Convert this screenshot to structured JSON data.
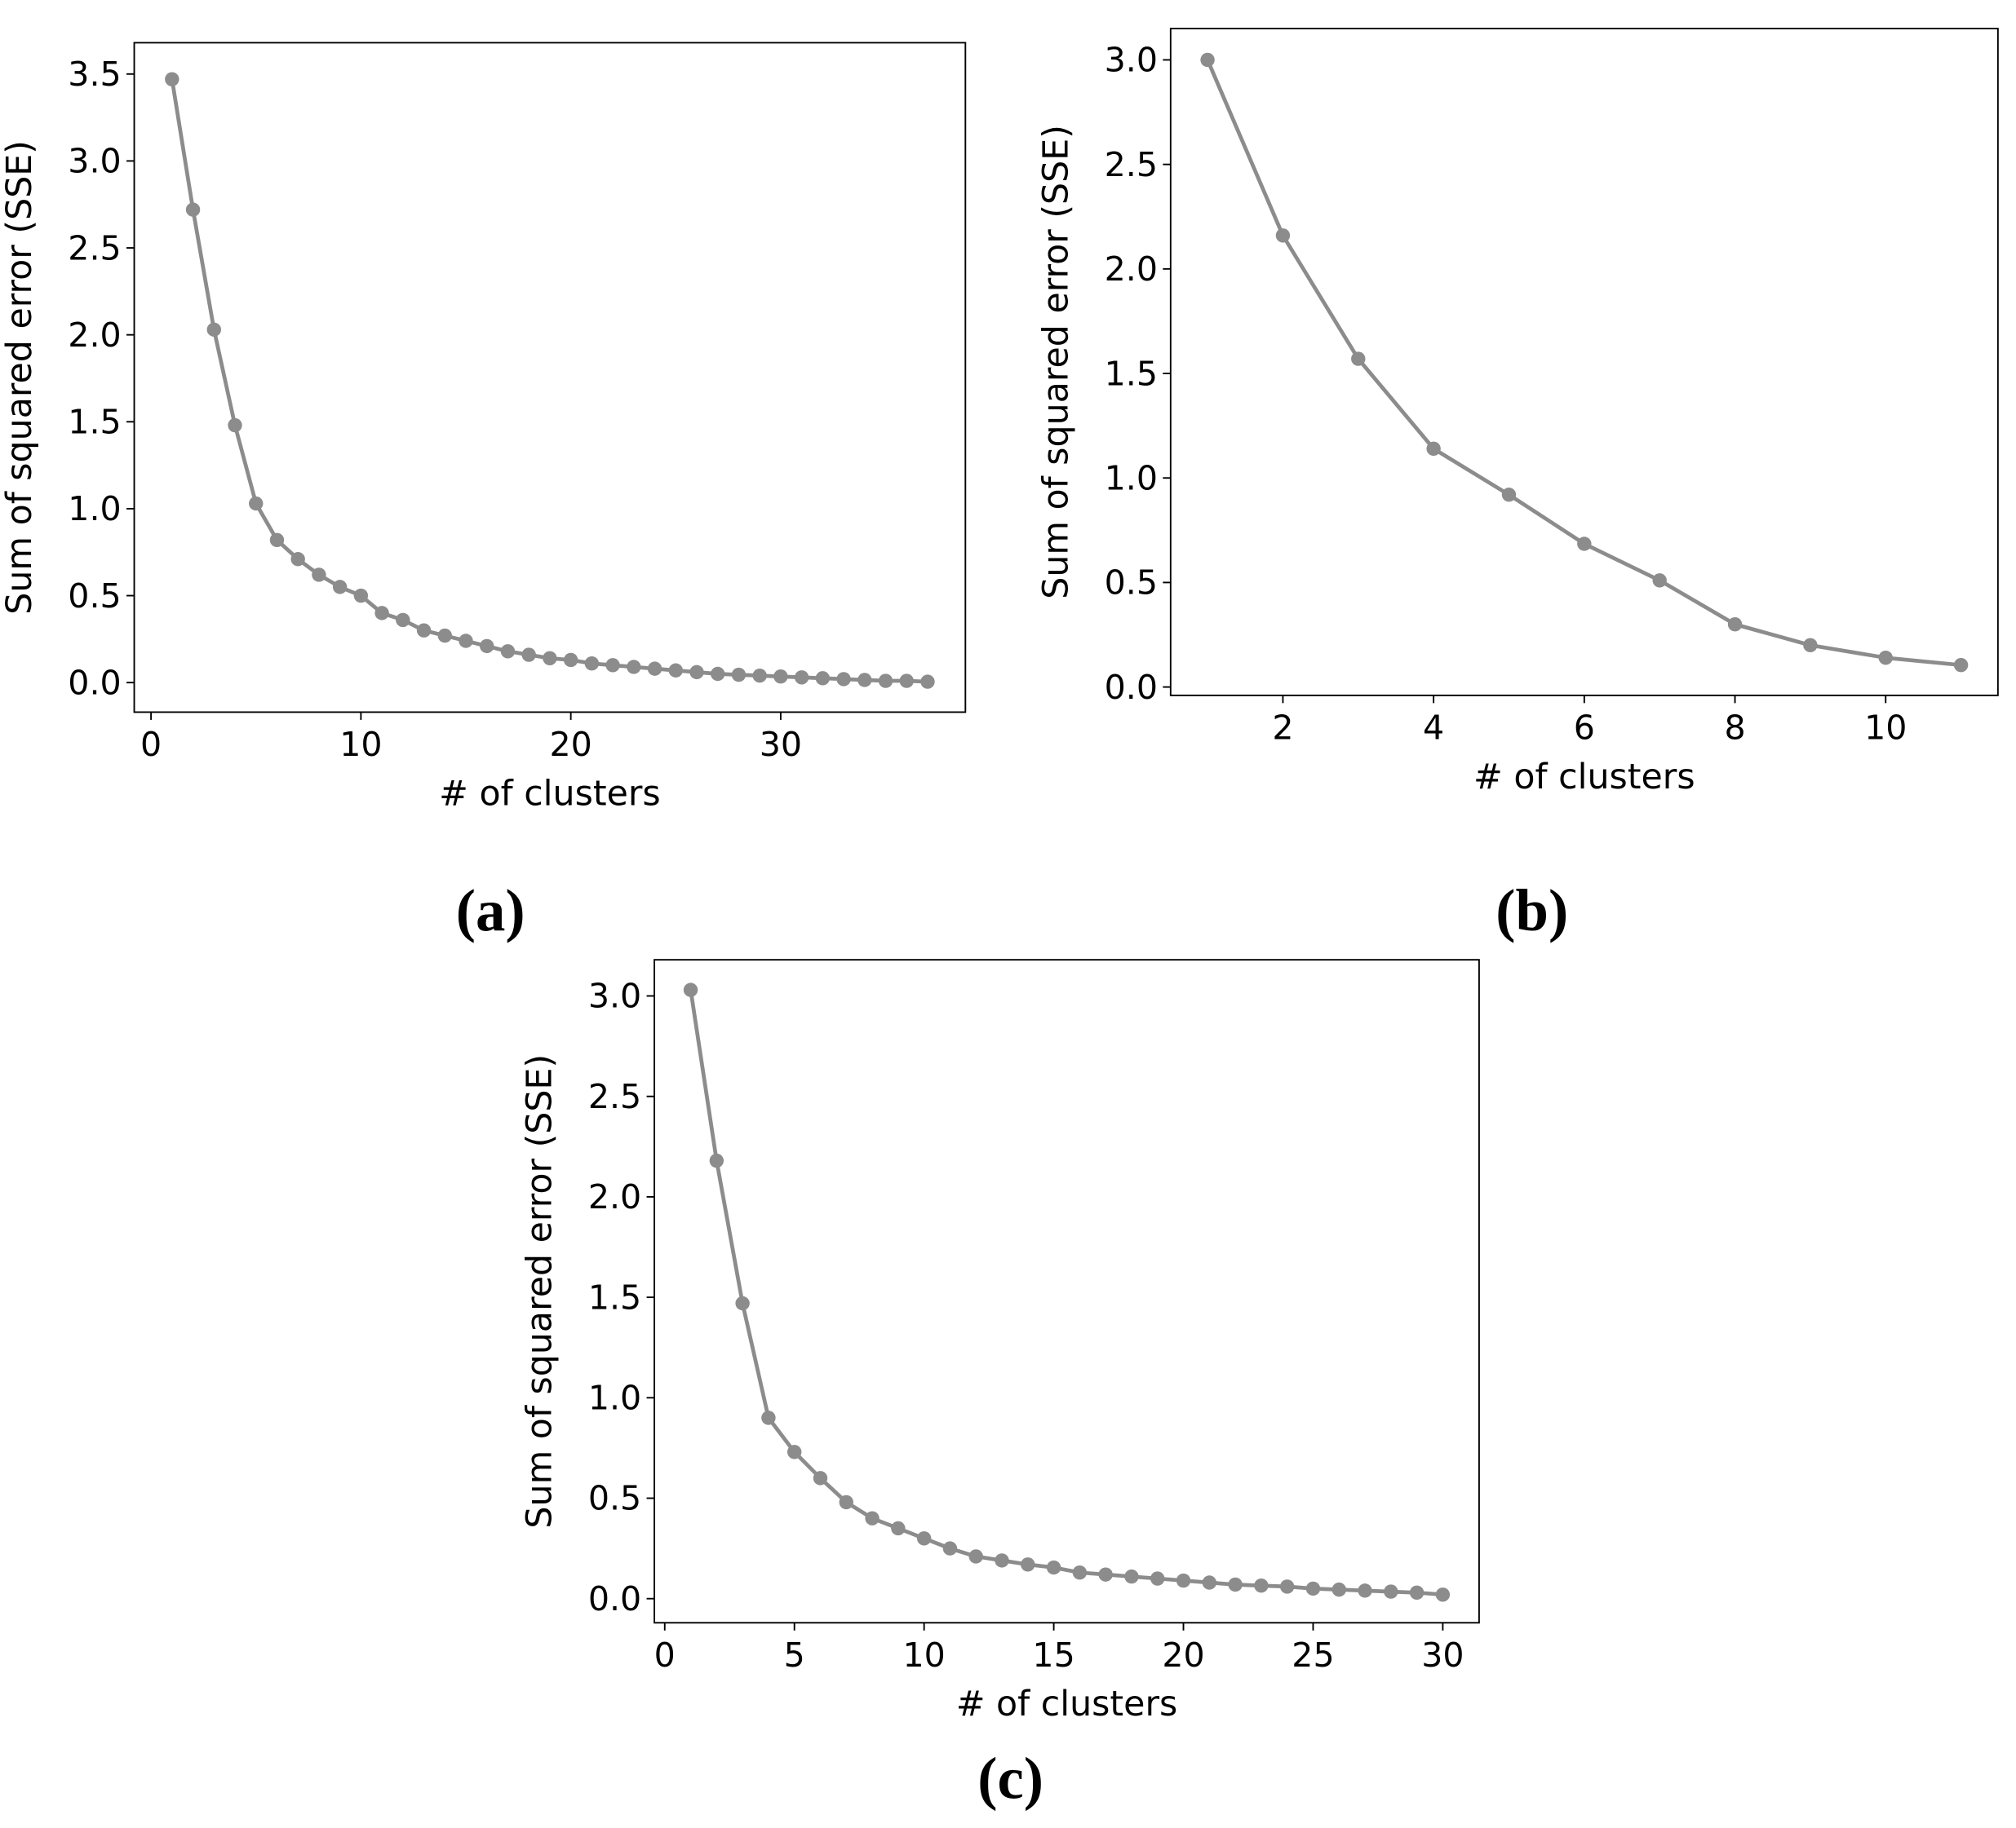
{
  "chart_data": [
    {
      "type": "line",
      "panel_label": "(a)",
      "xlabel": "# of clusters",
      "ylabel": "Sum of squared error (SSE)",
      "color": "#8c8c8c",
      "x": [
        1,
        2,
        3,
        4,
        5,
        6,
        7,
        8,
        9,
        10,
        11,
        12,
        13,
        14,
        15,
        16,
        17,
        18,
        19,
        20,
        21,
        22,
        23,
        24,
        25,
        26,
        27,
        28,
        29,
        30,
        31,
        32,
        33,
        34,
        35,
        36,
        37
      ],
      "values": [
        3.47,
        2.72,
        2.03,
        1.48,
        1.03,
        0.82,
        0.71,
        0.62,
        0.55,
        0.5,
        0.4,
        0.36,
        0.3,
        0.27,
        0.24,
        0.21,
        0.18,
        0.16,
        0.14,
        0.13,
        0.11,
        0.1,
        0.09,
        0.08,
        0.07,
        0.06,
        0.05,
        0.045,
        0.04,
        0.035,
        0.03,
        0.025,
        0.02,
        0.015,
        0.01,
        0.01,
        0.005
      ],
      "xlim": [
        -0.8,
        38.8
      ],
      "ylim": [
        -0.17,
        3.68
      ],
      "xticks": [
        0,
        10,
        20,
        30
      ],
      "yticks": [
        {
          "value": 0,
          "label": "0.0"
        },
        0.5,
        {
          "value": 1,
          "label": "1.0"
        },
        1.5,
        {
          "value": 2,
          "label": "2.0"
        },
        2.5,
        {
          "value": 3,
          "label": "3.0"
        },
        3.5
      ]
    },
    {
      "type": "line",
      "panel_label": "(b)",
      "xlabel": "# of clusters",
      "ylabel": "Sum of squared error (SSE)",
      "color": "#8c8c8c",
      "x": [
        1,
        2,
        3,
        4,
        5,
        6,
        7,
        8,
        9,
        10,
        11
      ],
      "values": [
        3.0,
        2.16,
        1.57,
        1.14,
        0.92,
        0.685,
        0.51,
        0.3,
        0.2,
        0.14,
        0.105
      ],
      "xlim": [
        0.51,
        11.49
      ],
      "ylim": [
        -0.04,
        3.15
      ],
      "xticks": [
        2,
        4,
        6,
        8,
        10
      ],
      "yticks": [
        {
          "value": 0,
          "label": "0.0"
        },
        0.5,
        {
          "value": 1,
          "label": "1.0"
        },
        1.5,
        {
          "value": 2,
          "label": "2.0"
        },
        2.5,
        {
          "value": 3,
          "label": "3.0"
        }
      ]
    },
    {
      "type": "line",
      "panel_label": "(c)",
      "xlabel": "# of clusters",
      "ylabel": "Sum of squared error (SSE)",
      "color": "#8c8c8c",
      "x": [
        1,
        2,
        3,
        4,
        5,
        6,
        7,
        8,
        9,
        10,
        11,
        12,
        13,
        14,
        15,
        16,
        17,
        18,
        19,
        20,
        21,
        22,
        23,
        24,
        25,
        26,
        27,
        28,
        29,
        30
      ],
      "values": [
        3.03,
        2.18,
        1.47,
        0.9,
        0.73,
        0.6,
        0.48,
        0.4,
        0.35,
        0.3,
        0.25,
        0.21,
        0.19,
        0.17,
        0.155,
        0.13,
        0.12,
        0.11,
        0.1,
        0.09,
        0.08,
        0.07,
        0.065,
        0.06,
        0.05,
        0.045,
        0.04,
        0.035,
        0.03,
        0.02
      ],
      "xlim": [
        -0.4,
        31.4
      ],
      "ylim": [
        -0.12,
        3.18
      ],
      "xticks": [
        0,
        5,
        10,
        15,
        20,
        25,
        30
      ],
      "yticks": [
        {
          "value": 0,
          "label": "0.0"
        },
        0.5,
        {
          "value": 1,
          "label": "1.0"
        },
        1.5,
        {
          "value": 2,
          "label": "2.0"
        },
        2.5,
        {
          "value": 3,
          "label": "3.0"
        }
      ]
    }
  ]
}
